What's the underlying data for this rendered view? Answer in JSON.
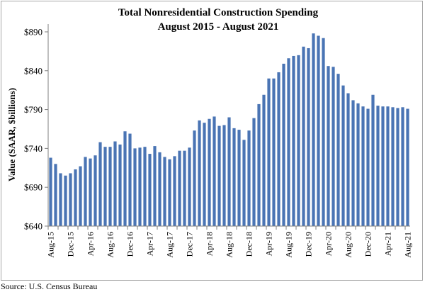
{
  "chart_data": {
    "type": "bar",
    "title": "Total Nonresidential Construction Spending",
    "subtitle": "August 2015 - August 2021",
    "ylabel": "Value (SAAR, $billions)",
    "xlabel": "",
    "ylim": [
      640,
      900
    ],
    "yticks": [
      "$640",
      "$690",
      "$740",
      "$790",
      "$840",
      "$890"
    ],
    "ytick_values": [
      640,
      690,
      740,
      790,
      840,
      890
    ],
    "grid": false,
    "legend": "none",
    "bar_color": "#4a74b4",
    "categories": [
      "Aug-15",
      "Sep-15",
      "Oct-15",
      "Nov-15",
      "Dec-15",
      "Jan-16",
      "Feb-16",
      "Mar-16",
      "Apr-16",
      "May-16",
      "Jun-16",
      "Jul-16",
      "Aug-16",
      "Sep-16",
      "Oct-16",
      "Nov-16",
      "Dec-16",
      "Jan-17",
      "Feb-17",
      "Mar-17",
      "Apr-17",
      "May-17",
      "Jun-17",
      "Jul-17",
      "Aug-17",
      "Sep-17",
      "Oct-17",
      "Nov-17",
      "Dec-17",
      "Jan-18",
      "Feb-18",
      "Mar-18",
      "Apr-18",
      "May-18",
      "Jun-18",
      "Jul-18",
      "Aug-18",
      "Sep-18",
      "Oct-18",
      "Nov-18",
      "Dec-18",
      "Jan-19",
      "Feb-19",
      "Mar-19",
      "Apr-19",
      "May-19",
      "Jun-19",
      "Jul-19",
      "Aug-19",
      "Sep-19",
      "Oct-19",
      "Nov-19",
      "Dec-19",
      "Jan-20",
      "Feb-20",
      "Mar-20",
      "Apr-20",
      "May-20",
      "Jun-20",
      "Jul-20",
      "Aug-20",
      "Sep-20",
      "Oct-20",
      "Nov-20",
      "Dec-20",
      "Jan-21",
      "Feb-21",
      "Mar-21",
      "Apr-21",
      "May-21",
      "Jun-21",
      "Jul-21",
      "Aug-21"
    ],
    "x_tick_labels": [
      "Aug-15",
      "Dec-15",
      "Apr-16",
      "Aug-16",
      "Dec-16",
      "Apr-17",
      "Aug-17",
      "Dec-17",
      "Apr-18",
      "Aug-18",
      "Dec-18",
      "Apr-19",
      "Aug-19",
      "Dec-19",
      "Apr-20",
      "Aug-20",
      "Dec-20",
      "Apr-21",
      "Aug-21"
    ],
    "values": [
      728,
      720,
      708,
      705,
      708,
      713,
      717,
      729,
      727,
      731,
      748,
      742,
      742,
      749,
      745,
      762,
      759,
      740,
      741,
      742,
      733,
      743,
      735,
      729,
      726,
      730,
      737,
      737,
      741,
      763,
      776,
      773,
      778,
      781,
      769,
      770,
      780,
      766,
      764,
      751,
      763,
      779,
      797,
      809,
      830,
      830,
      838,
      849,
      856,
      859,
      860,
      871,
      869,
      888,
      885,
      882,
      846,
      845,
      836,
      821,
      811,
      802,
      798,
      794,
      791,
      809,
      795,
      794,
      794,
      793,
      792,
      793,
      791
    ]
  },
  "source_text": "Source:  U.S. Census Bureau"
}
